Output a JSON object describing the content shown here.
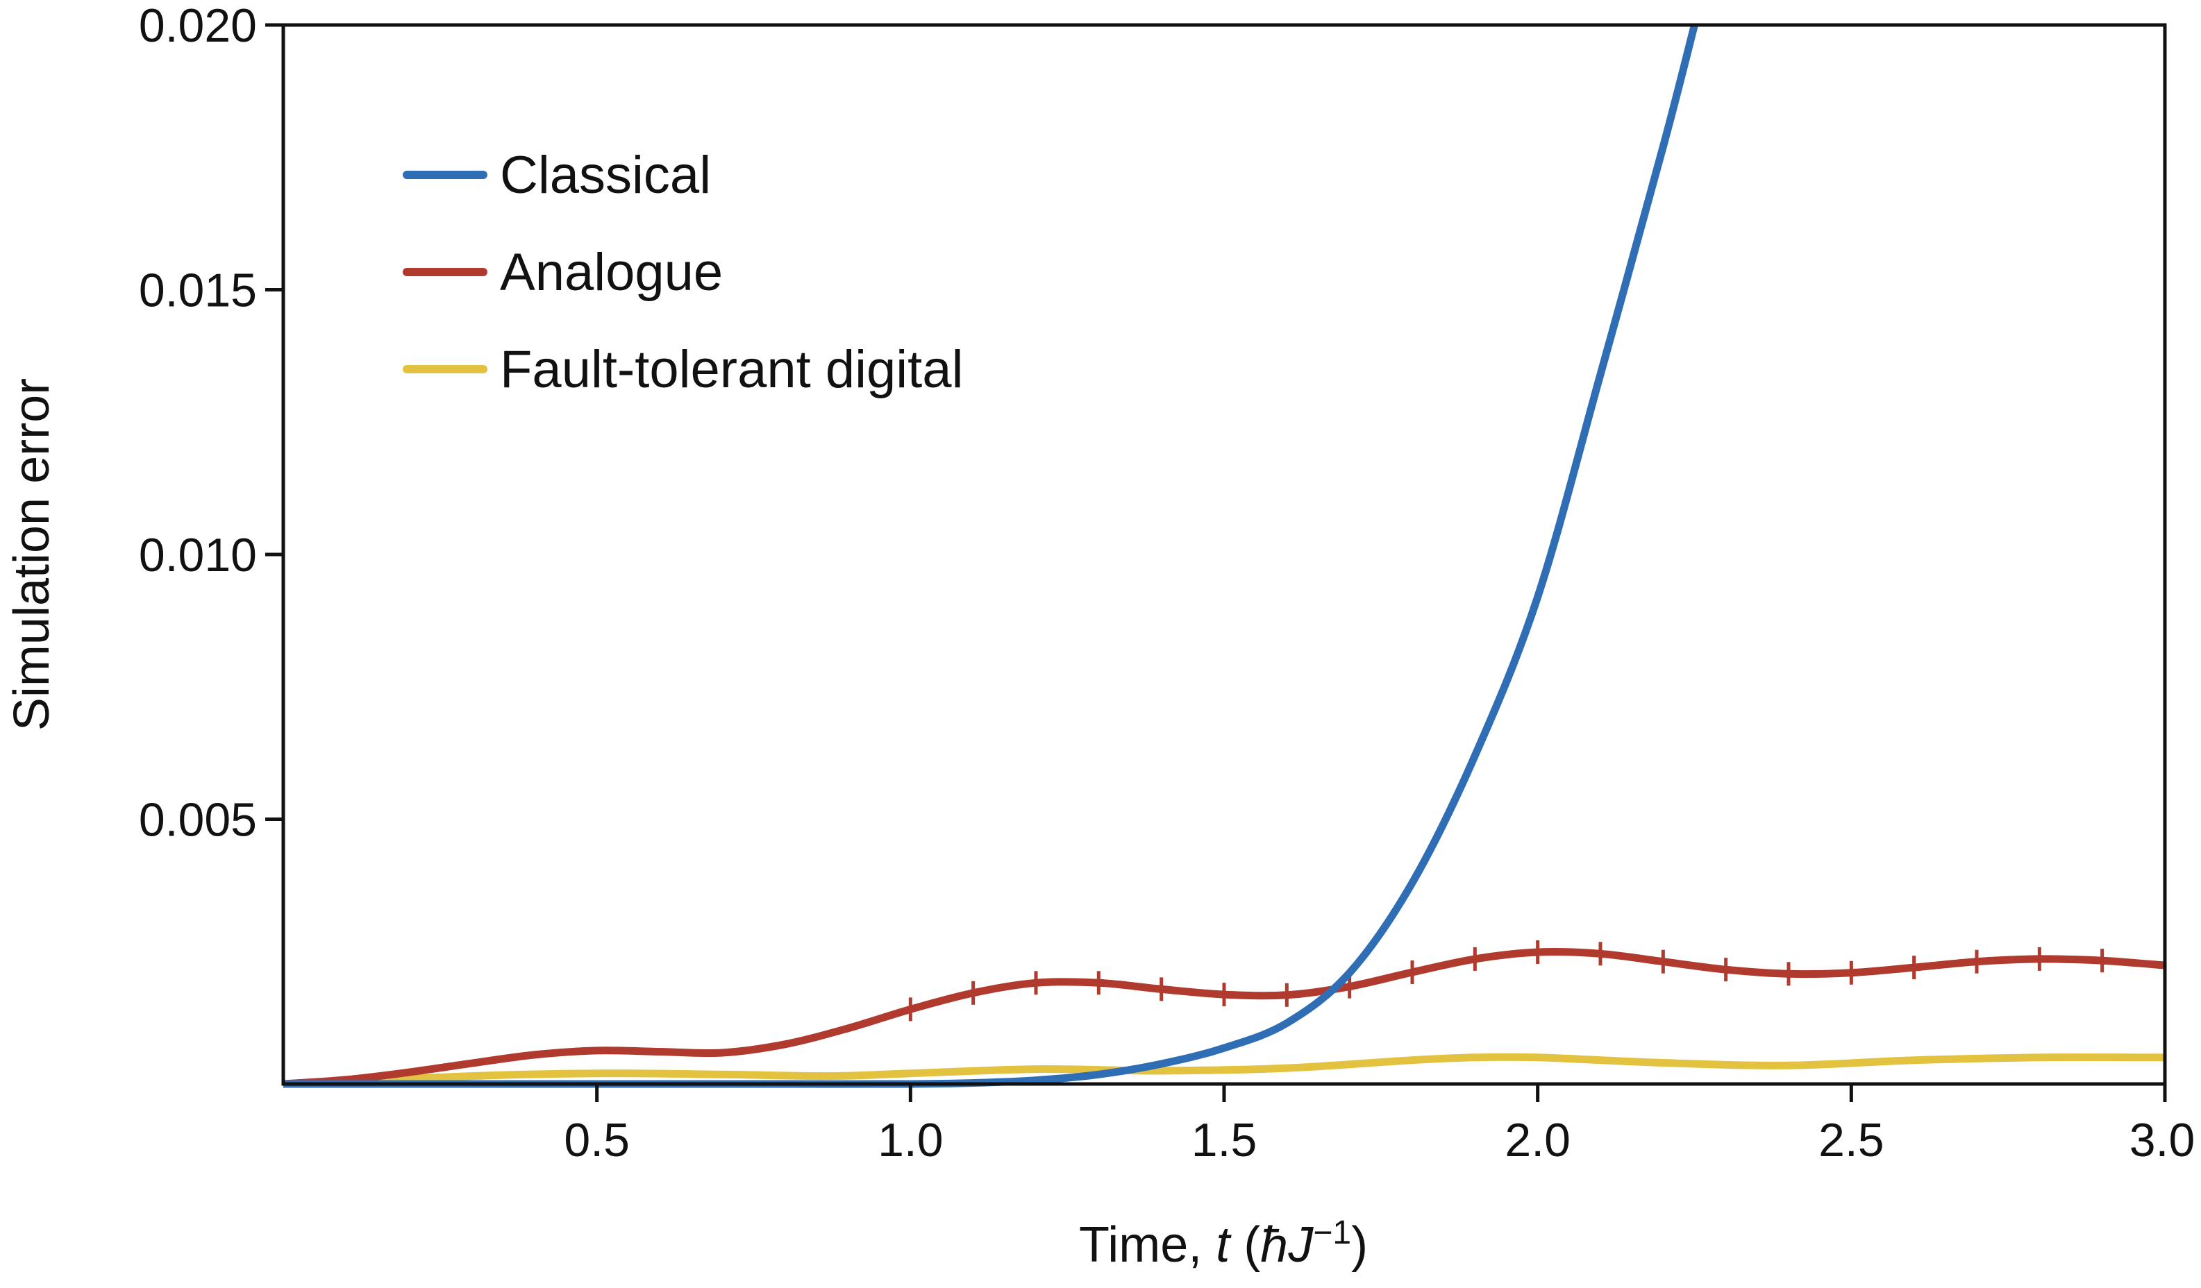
{
  "chart_data": {
    "type": "line",
    "xlabel_parts": {
      "prefix": "Time, ",
      "t": "t",
      "open": " (",
      "hbar": "ħ",
      "J": "J",
      "sup": "−1",
      "close": ")"
    },
    "ylabel": "Simulation error",
    "xlim": [
      0,
      3.0
    ],
    "ylim": [
      0,
      0.02
    ],
    "xticks": [
      0.5,
      1.0,
      1.5,
      2.0,
      2.5,
      3.0
    ],
    "xtick_labels": [
      "0.5",
      "1.0",
      "1.5",
      "2.0",
      "2.5",
      "3.0"
    ],
    "yticks": [
      0.005,
      0.01,
      0.015,
      0.02
    ],
    "ytick_labels": [
      "0.005",
      "0.010",
      "0.015",
      "0.020"
    ],
    "grid": false,
    "legend_position": "top-left",
    "series": [
      {
        "name": "Classical",
        "color": "#2f6db5",
        "x": [
          0.0,
          0.2,
          0.4,
          0.6,
          0.8,
          1.0,
          1.1,
          1.2,
          1.3,
          1.4,
          1.5,
          1.6,
          1.7,
          1.8,
          1.9,
          2.0,
          2.1,
          2.2,
          2.25
        ],
        "y": [
          0.0,
          0.0,
          0.0,
          0.0,
          0.0,
          0.0,
          2e-05,
          7e-05,
          0.00018,
          0.00038,
          0.00068,
          0.00115,
          0.0021,
          0.0038,
          0.0062,
          0.0092,
          0.0134,
          0.0177,
          0.02
        ]
      },
      {
        "name": "Analogue",
        "color": "#b03a2e",
        "x": [
          0.0,
          0.1,
          0.2,
          0.3,
          0.4,
          0.5,
          0.6,
          0.7,
          0.8,
          0.9,
          1.0,
          1.1,
          1.2,
          1.3,
          1.4,
          1.5,
          1.6,
          1.7,
          1.8,
          1.9,
          2.0,
          2.1,
          2.2,
          2.3,
          2.4,
          2.5,
          2.6,
          2.7,
          2.8,
          2.9,
          3.0
        ],
        "y": [
          0.0,
          8e-05,
          0.00022,
          0.00039,
          0.00055,
          0.00063,
          0.00061,
          0.00059,
          0.00075,
          0.00105,
          0.00141,
          0.00172,
          0.00191,
          0.00191,
          0.00179,
          0.00169,
          0.00168,
          0.00184,
          0.00211,
          0.00236,
          0.00249,
          0.00246,
          0.00231,
          0.00216,
          0.00208,
          0.0021,
          0.0022,
          0.00231,
          0.00236,
          0.00233,
          0.00224
        ]
      },
      {
        "name": "Fault-tolerant digital",
        "color": "#e2c23f",
        "x": [
          0.12,
          0.3,
          0.5,
          0.7,
          0.87,
          1.0,
          1.2,
          1.4,
          1.6,
          1.8,
          1.9,
          2.0,
          2.2,
          2.4,
          2.6,
          2.8,
          3.0
        ],
        "y": [
          5e-05,
          0.00015,
          0.0002,
          0.00018,
          0.00015,
          0.0002,
          0.00028,
          0.00025,
          0.0003,
          0.00045,
          0.0005,
          0.0005,
          0.0004,
          0.00035,
          0.00045,
          0.0005,
          0.0005
        ]
      }
    ]
  }
}
